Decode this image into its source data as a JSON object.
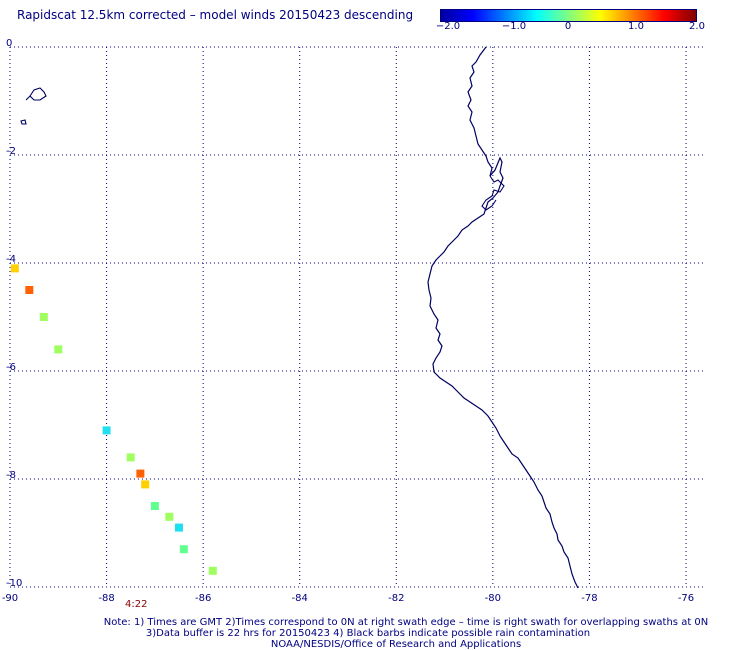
{
  "title": "Rapidscat 12.5km corrected – model winds 20150423 descending",
  "colorbar": {
    "min": -2.0,
    "max": 2.0,
    "ticks": [
      "−2.0",
      "−1.0",
      "0",
      "1.0",
      "2.0"
    ],
    "colors": [
      "#0000a0",
      "#0000ff",
      "#0080ff",
      "#00ffff",
      "#80ff80",
      "#ffff00",
      "#ff8000",
      "#ff0000",
      "#800000"
    ]
  },
  "map": {
    "lon_range": [
      -90,
      -76
    ],
    "lat_range": [
      -10,
      0
    ],
    "lon_ticks": [
      "-90",
      "-88",
      "-86",
      "-84",
      "-82",
      "-80",
      "-78",
      "-76"
    ],
    "lat_ticks": [
      "0",
      "-2",
      "-4",
      "-6",
      "-8",
      "-10"
    ],
    "coast_color": "#000060",
    "grid_color": "#000080"
  },
  "wind_cells": [
    {
      "lon": -89.9,
      "lat": -4.1,
      "value": 1.0,
      "color": "#ffd000"
    },
    {
      "lon": -89.6,
      "lat": -4.5,
      "value": 1.6,
      "color": "#ff6000"
    },
    {
      "lon": -89.3,
      "lat": -5.0,
      "value": 0.5,
      "color": "#a0ff60"
    },
    {
      "lon": -89.0,
      "lat": -5.6,
      "value": 0.5,
      "color": "#a0ff60"
    },
    {
      "lon": -88.0,
      "lat": -7.1,
      "value": -0.8,
      "color": "#20e0f0"
    },
    {
      "lon": -87.5,
      "lat": -7.6,
      "value": 0.5,
      "color": "#a0ff60"
    },
    {
      "lon": -87.3,
      "lat": -7.9,
      "value": 1.6,
      "color": "#ff6000"
    },
    {
      "lon": -87.2,
      "lat": -8.1,
      "value": 1.0,
      "color": "#ffd000"
    },
    {
      "lon": -87.0,
      "lat": -8.5,
      "value": 0.0,
      "color": "#60ff90"
    },
    {
      "lon": -86.7,
      "lat": -8.7,
      "value": 0.5,
      "color": "#a0ff60"
    },
    {
      "lon": -86.5,
      "lat": -8.9,
      "value": -0.8,
      "color": "#20e0f0"
    },
    {
      "lon": -86.4,
      "lat": -9.3,
      "value": 0.0,
      "color": "#60ff90"
    },
    {
      "lon": -85.8,
      "lat": -9.7,
      "value": 0.5,
      "color": "#a0ff60"
    }
  ],
  "time_label": "4:22",
  "notes": [
    "Note: 1) Times are GMT 2)Times correspond to 0N at right swath edge – time is right swath for overlapping swaths at 0N",
    "3)Data buffer is 22 hrs for 20150423 4) Black barbs indicate possible rain contamination",
    "NOAA/NESDIS/Office of Research and Applications"
  ]
}
